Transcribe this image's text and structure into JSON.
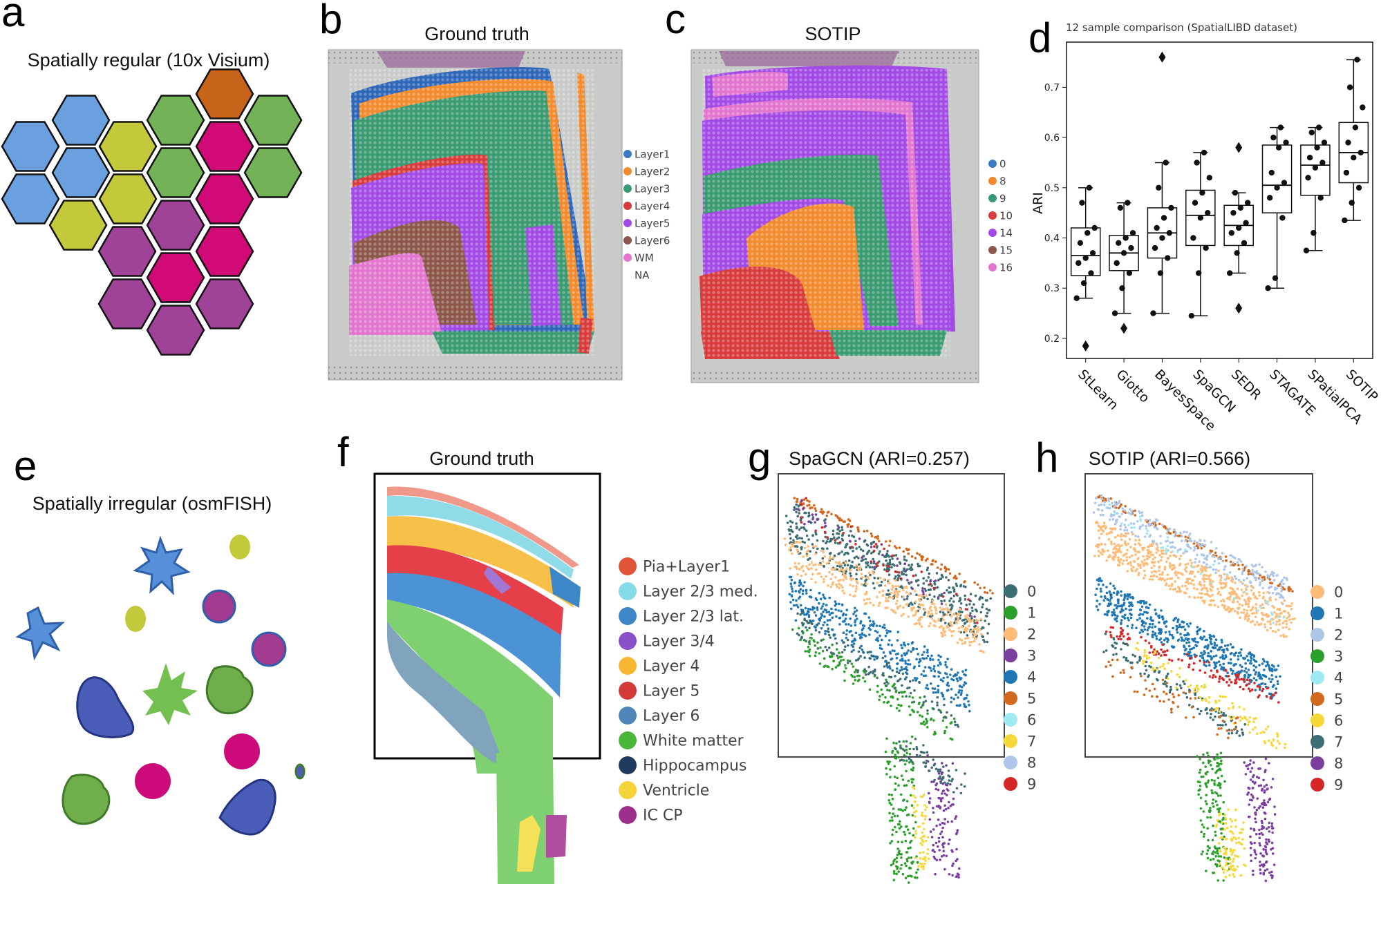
{
  "panels": {
    "a": {
      "letter": "a",
      "title": "Spatially regular (10x Visium)"
    },
    "b": {
      "letter": "b",
      "title": "Ground truth",
      "legend": [
        "Layer1",
        "Layer2",
        "Layer3",
        "Layer4",
        "Layer5",
        "Layer6",
        "WM",
        "NA"
      ],
      "colors": [
        "#3b7bc4",
        "#f28a2e",
        "#3a9a72",
        "#d83b3b",
        "#a24ae6",
        "#8c574a",
        "#e175cf",
        "none"
      ]
    },
    "c": {
      "letter": "c",
      "title": "SOTIP",
      "legend": [
        "0",
        "8",
        "9",
        "10",
        "14",
        "15",
        "16"
      ],
      "colors": [
        "#3b7bc4",
        "#f28a2e",
        "#3a9a72",
        "#d83b3b",
        "#a24ae6",
        "#8c574a",
        "#e175cf"
      ]
    },
    "d": {
      "letter": "d"
    },
    "e": {
      "letter": "e",
      "title": "Spatially irregular (osmFISH)"
    },
    "f": {
      "letter": "f",
      "title": "Ground truth",
      "legend": [
        "Pia+Layer1",
        "Layer 2/3 med.",
        "Layer 2/3 lat.",
        "Layer 3/4",
        "Layer 4",
        "Layer 5",
        "Layer 6",
        "White matter",
        "Hippocampus",
        "Ventricle",
        "IC CP"
      ],
      "colors": [
        "#e0553a",
        "#86dbe8",
        "#3d86c8",
        "#8b4fc8",
        "#f7b733",
        "#d33a3a",
        "#4f86b8",
        "#4bb53a",
        "#1e3a5c",
        "#f5d33a",
        "#9c2f8c"
      ]
    },
    "g": {
      "letter": "g",
      "title": "SpaGCN (ARI=0.257)",
      "legend": [
        "0",
        "1",
        "2",
        "3",
        "4",
        "5",
        "6",
        "7",
        "8",
        "9"
      ],
      "colors": [
        "#3d6e73",
        "#2ca02c",
        "#ffbb78",
        "#7b3fa0",
        "#1f77b4",
        "#d2691e",
        "#9ee9f2",
        "#f7d83a",
        "#aec7e8",
        "#d62728"
      ]
    },
    "h": {
      "letter": "h",
      "title": "SOTIP (ARI=0.566)",
      "legend": [
        "0",
        "1",
        "2",
        "3",
        "4",
        "5",
        "6",
        "7",
        "8",
        "9"
      ],
      "colors": [
        "#ffbb78",
        "#1f77b4",
        "#aec7e8",
        "#2ca02c",
        "#9ee9f2",
        "#d2691e",
        "#f7d83a",
        "#3d6e73",
        "#7b3fa0",
        "#d62728"
      ]
    }
  },
  "chart_data": {
    "type": "box",
    "title": "12 sample comparison (SpatialLIBD dataset)",
    "xlabel": "",
    "ylabel": "ARI",
    "ylim": [
      0.16,
      0.79
    ],
    "yticks": [
      "0.2",
      "0.3",
      "0.4",
      "0.5",
      "0.6",
      "0.7"
    ],
    "categories": [
      "StLearn",
      "Giotto",
      "BayesSpace",
      "SpaGCN",
      "SEDR",
      "STAGATE",
      "SPatialPCA",
      "SOTIP"
    ],
    "boxes": [
      {
        "name": "StLearn",
        "q1": 0.325,
        "median": 0.365,
        "q3": 0.42,
        "whisker_low": 0.28,
        "whisker_high": 0.5,
        "fliers": [
          0.185
        ],
        "points": [
          0.28,
          0.31,
          0.33,
          0.35,
          0.36,
          0.37,
          0.39,
          0.41,
          0.42,
          0.47,
          0.5
        ]
      },
      {
        "name": "Giotto",
        "q1": 0.335,
        "median": 0.37,
        "q3": 0.405,
        "whisker_low": 0.25,
        "whisker_high": 0.47,
        "fliers": [
          0.22
        ],
        "points": [
          0.25,
          0.3,
          0.33,
          0.35,
          0.37,
          0.38,
          0.39,
          0.4,
          0.41,
          0.46,
          0.47
        ]
      },
      {
        "name": "BayesSpace",
        "q1": 0.36,
        "median": 0.41,
        "q3": 0.46,
        "whisker_low": 0.25,
        "whisker_high": 0.55,
        "fliers": [
          0.76
        ],
        "points": [
          0.25,
          0.33,
          0.36,
          0.38,
          0.4,
          0.41,
          0.42,
          0.44,
          0.46,
          0.5,
          0.55
        ]
      },
      {
        "name": "SpaGCN",
        "q1": 0.385,
        "median": 0.445,
        "q3": 0.495,
        "whisker_low": 0.245,
        "whisker_high": 0.57,
        "fliers": [],
        "points": [
          0.245,
          0.33,
          0.38,
          0.4,
          0.44,
          0.45,
          0.47,
          0.49,
          0.52,
          0.55,
          0.57
        ]
      },
      {
        "name": "SEDR",
        "q1": 0.385,
        "median": 0.425,
        "q3": 0.465,
        "whisker_low": 0.33,
        "whisker_high": 0.49,
        "fliers": [
          0.26,
          0.58
        ],
        "points": [
          0.33,
          0.37,
          0.39,
          0.41,
          0.42,
          0.43,
          0.45,
          0.46,
          0.47,
          0.49
        ]
      },
      {
        "name": "STAGATE",
        "q1": 0.45,
        "median": 0.505,
        "q3": 0.585,
        "whisker_low": 0.3,
        "whisker_high": 0.62,
        "fliers": [],
        "points": [
          0.3,
          0.32,
          0.44,
          0.48,
          0.5,
          0.51,
          0.53,
          0.58,
          0.59,
          0.6,
          0.62
        ]
      },
      {
        "name": "SPatialPCA",
        "q1": 0.485,
        "median": 0.545,
        "q3": 0.585,
        "whisker_low": 0.375,
        "whisker_high": 0.62,
        "fliers": [],
        "points": [
          0.375,
          0.41,
          0.48,
          0.52,
          0.54,
          0.55,
          0.56,
          0.58,
          0.59,
          0.61,
          0.62
        ]
      },
      {
        "name": "SOTIP",
        "q1": 0.51,
        "median": 0.57,
        "q3": 0.63,
        "whisker_low": 0.435,
        "whisker_high": 0.755,
        "fliers": [],
        "points": [
          0.435,
          0.47,
          0.5,
          0.53,
          0.56,
          0.57,
          0.59,
          0.62,
          0.66,
          0.7,
          0.755
        ]
      }
    ]
  }
}
